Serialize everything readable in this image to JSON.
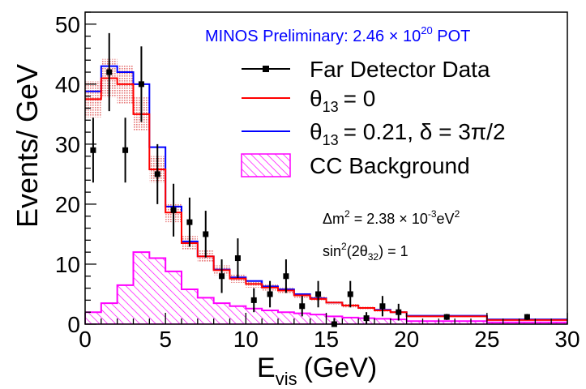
{
  "chart_data": {
    "type": "histogram",
    "title": "",
    "xlabel": "E",
    "xlabel_sub": "vis",
    "xlabel_unit": "(GeV)",
    "ylabel": "Events/ GeV",
    "xlim": [
      0,
      30
    ],
    "ylim": [
      0,
      52
    ],
    "x_ticks": [
      "0",
      "5",
      "10",
      "15",
      "20",
      "25",
      "30"
    ],
    "y_ticks": [
      "0",
      "10",
      "20",
      "30",
      "40",
      "50"
    ],
    "bin_edges": [
      0,
      1,
      2,
      3,
      4,
      5,
      6,
      7,
      8,
      9,
      10,
      11,
      12,
      13,
      14,
      15,
      16,
      17,
      18,
      19,
      20,
      25,
      30
    ],
    "colors": {
      "data": "#000000",
      "theta0": "#ff0000",
      "theta021": "#0000ff",
      "background": "#ff00ff",
      "band": "#e06060",
      "preliminary": "#0000ff"
    },
    "series": [
      {
        "name": "Far Detector Data",
        "kind": "points",
        "x": [
          0.5,
          1.5,
          2.5,
          3.5,
          4.5,
          5.5,
          6.5,
          7.5,
          8.5,
          9.5,
          10.5,
          11.5,
          12.5,
          13.5,
          14.5,
          15.5,
          16.5,
          17.5,
          18.5,
          19.5,
          22.5,
          27.5
        ],
        "y": [
          29,
          42,
          29,
          40,
          25,
          19,
          17,
          15,
          8,
          11,
          4,
          5,
          8,
          3,
          5,
          0,
          5,
          1,
          3,
          2,
          1.2,
          1.2
        ],
        "err": [
          5.4,
          6.5,
          5.4,
          6.3,
          5,
          4.4,
          4.1,
          3.9,
          2.8,
          3.3,
          2,
          2.2,
          2.8,
          1.7,
          2.2,
          1,
          2.2,
          1,
          1.7,
          1.4,
          0.5,
          0.5
        ]
      },
      {
        "name": "θ13 = 0",
        "kind": "step",
        "values": [
          37.5,
          41,
          40,
          35,
          25.8,
          18.6,
          13.5,
          11.3,
          9,
          7.6,
          6.7,
          6.1,
          5.6,
          4.8,
          4.2,
          3.6,
          3.1,
          2.7,
          2.3,
          2.0,
          1.3,
          0.7
        ],
        "band_err": [
          3.0,
          3.2,
          3.2,
          2.8,
          2.2,
          1.6,
          1.2,
          1.0,
          0.8,
          0.7,
          0.6,
          0.5,
          0.5,
          0.4,
          0.4,
          0.3,
          0.3,
          0.2,
          0.2,
          0.2,
          0.1,
          0.1
        ]
      },
      {
        "name": "θ13 = 0.21, δ = 3π/2",
        "kind": "step",
        "values": [
          38.8,
          43,
          42,
          40,
          29.5,
          19.6,
          13.8,
          11.3,
          9.1,
          7.8,
          7.2,
          6.3,
          5.8,
          5.0,
          4.3,
          3.6,
          3.1,
          2.7,
          2.4,
          2.0,
          1.4,
          0.8
        ]
      },
      {
        "name": "CC Background",
        "kind": "hatched-step",
        "values": [
          2,
          3.5,
          6.5,
          12,
          11,
          8.8,
          5.8,
          4.4,
          3.5,
          3.0,
          2.6,
          2.3,
          2.0,
          1.8,
          1.6,
          1.3,
          1.1,
          1.0,
          0.9,
          0.8,
          0.5,
          0.3
        ]
      }
    ],
    "annotations": {
      "preliminary_prefix": "MINOS Preliminary: 2.46",
      "preliminary_times": "×",
      "preliminary_base": "10",
      "preliminary_exp": "20",
      "preliminary_suffix": "POT",
      "dm2_prefix": "Δm",
      "dm2_sup": "2",
      "dm2_value": "= 2.38",
      "dm2_times": "×",
      "dm2_base": "10",
      "dm2_exp": "-3",
      "dm2_unit": "eV",
      "dm2_unit_sup": "2",
      "sin_prefix": "sin",
      "sin_sup": "2",
      "sin_arg": "(2θ",
      "sin_sub": "32",
      "sin_value": ") = 1"
    },
    "legend": {
      "placement": "top-right",
      "items": [
        {
          "label": "Far Detector Data"
        },
        {
          "label_main": "θ",
          "label_sub": "13",
          "label_rest": "= 0"
        },
        {
          "label_main": "θ",
          "label_sub": "13",
          "label_rest": "= 0.21, δ = 3π/2"
        },
        {
          "label": "CC Background"
        }
      ]
    }
  }
}
